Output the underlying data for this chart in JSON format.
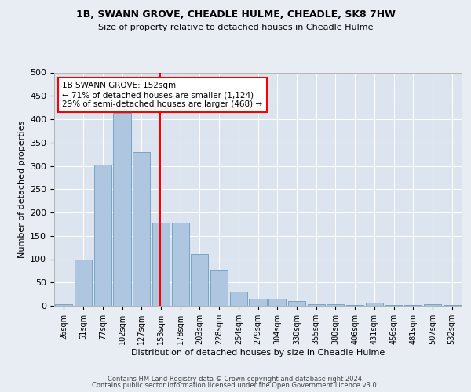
{
  "title1": "1B, SWANN GROVE, CHEADLE HULME, CHEADLE, SK8 7HW",
  "title2": "Size of property relative to detached houses in Cheadle Hulme",
  "xlabel": "Distribution of detached houses by size in Cheadle Hulme",
  "ylabel": "Number of detached properties",
  "bar_labels": [
    "26sqm",
    "51sqm",
    "77sqm",
    "102sqm",
    "127sqm",
    "153sqm",
    "178sqm",
    "203sqm",
    "228sqm",
    "254sqm",
    "279sqm",
    "304sqm",
    "330sqm",
    "355sqm",
    "380sqm",
    "406sqm",
    "431sqm",
    "456sqm",
    "481sqm",
    "507sqm",
    "532sqm"
  ],
  "bar_values": [
    3,
    99,
    302,
    413,
    330,
    178,
    178,
    111,
    75,
    30,
    15,
    15,
    10,
    4,
    4,
    2,
    6,
    2,
    1,
    3,
    2
  ],
  "bar_color": "#aec6e0",
  "bar_edge_color": "#6a9fc0",
  "annotation_title": "1B SWANN GROVE: 152sqm",
  "annotation_line1": "← 71% of detached houses are smaller (1,124)",
  "annotation_line2": "29% of semi-detached houses are larger (468) →",
  "red_line_index": 4.96,
  "ylim": [
    0,
    500
  ],
  "yticks": [
    0,
    50,
    100,
    150,
    200,
    250,
    300,
    350,
    400,
    450,
    500
  ],
  "footer1": "Contains HM Land Registry data © Crown copyright and database right 2024.",
  "footer2": "Contains public sector information licensed under the Open Government Licence v3.0.",
  "bg_color": "#e8edf4",
  "plot_bg_color": "#dce4f0"
}
